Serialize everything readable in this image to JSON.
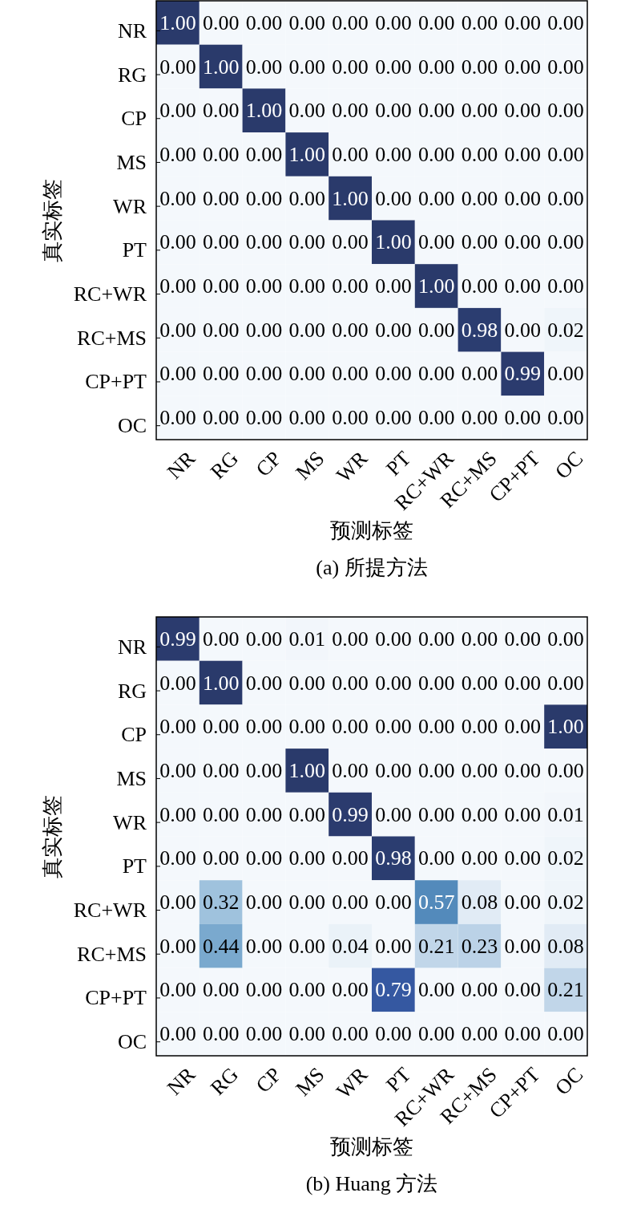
{
  "chart_data": [
    {
      "type": "heatmap",
      "title": "(a) 所提方法",
      "xlabel": "预测标签",
      "ylabel": "真实标签",
      "categories": [
        "NR",
        "RG",
        "CP",
        "MS",
        "WR",
        "PT",
        "RC+WR",
        "RC+MS",
        "CP+PT",
        "OC"
      ],
      "y_categories": [
        "NR",
        "RG",
        "CP",
        "MS",
        "WR",
        "PT",
        "RC+WR",
        "RC+MS",
        "CP+PT",
        "OC"
      ],
      "cells": [
        [
          1,
          0,
          0,
          0,
          0,
          0,
          0,
          0,
          0,
          0
        ],
        [
          0,
          1,
          0,
          0,
          0,
          0,
          0,
          0,
          0,
          0
        ],
        [
          0,
          0,
          1,
          0,
          0,
          0,
          0,
          0,
          0,
          0
        ],
        [
          0,
          0,
          0,
          1,
          0,
          0,
          0,
          0,
          0,
          0
        ],
        [
          0,
          0,
          0,
          0,
          1,
          0,
          0,
          0,
          0,
          0
        ],
        [
          0,
          0,
          0,
          0,
          0,
          1,
          0,
          0,
          0,
          0
        ],
        [
          0,
          0,
          0,
          0,
          0,
          0,
          1,
          0,
          0,
          0
        ],
        [
          0,
          0,
          0,
          0,
          0,
          0,
          0,
          0.98,
          0,
          0.02
        ],
        [
          0,
          0,
          0,
          0,
          0,
          0,
          0,
          0,
          0.99,
          0
        ],
        [
          0,
          0,
          0,
          0,
          0,
          0,
          0,
          0,
          0,
          0
        ]
      ],
      "cell_labels": [
        [
          "1.00",
          "0.00",
          "0.00",
          "0.00",
          "0.00",
          "0.00",
          "0.00",
          "0.00",
          "0.00",
          "0.00"
        ],
        [
          "0.00",
          "1.00",
          "0.00",
          "0.00",
          "0.00",
          "0.00",
          "0.00",
          "0.00",
          "0.00",
          "0.00"
        ],
        [
          "0.00",
          "0.00",
          "1.00",
          "0.00",
          "0.00",
          "0.00",
          "0.00",
          "0.00",
          "0.00",
          "0.00"
        ],
        [
          "0.00",
          "0.00",
          "0.00",
          "1.00",
          "0.00",
          "0.00",
          "0.00",
          "0.00",
          "0.00",
          "0.00"
        ],
        [
          "0.00",
          "0.00",
          "0.00",
          "0.00",
          "1.00",
          "0.00",
          "0.00",
          "0.00",
          "0.00",
          "0.00"
        ],
        [
          "0.00",
          "0.00",
          "0.00",
          "0.00",
          "0.00",
          "1.00",
          "0.00",
          "0.00",
          "0.00",
          "0.00"
        ],
        [
          "0.00",
          "0.00",
          "0.00",
          "0.00",
          "0.00",
          "0.00",
          "1.00",
          "0.00",
          "0.00",
          "0.00"
        ],
        [
          "0.00",
          "0.00",
          "0.00",
          "0.00",
          "0.00",
          "0.00",
          "0.00",
          "0.98",
          "0.00",
          "0.02"
        ],
        [
          "0.00",
          "0.00",
          "0.00",
          "0.00",
          "0.00",
          "0.00",
          "0.00",
          "0.00",
          "0.99",
          "0.00"
        ],
        [
          "0.00",
          "0.00",
          "0.00",
          "0.00",
          "0.00",
          "0.00",
          "0.00",
          "0.00",
          "0.00",
          "0.00"
        ]
      ]
    },
    {
      "type": "heatmap",
      "title": "(b) Huang 方法",
      "xlabel": "预测标签",
      "ylabel": "真实标签",
      "categories": [
        "NR",
        "RG",
        "CP",
        "MS",
        "WR",
        "PT",
        "RC+WR",
        "RC+MS",
        "CP+PT",
        "OC"
      ],
      "y_categories": [
        "NR",
        "RG",
        "CP",
        "MS",
        "WR",
        "PT",
        "RC+WR",
        "RC+MS",
        "CP+PT",
        "OC"
      ],
      "cells": [
        [
          0.99,
          0,
          0,
          0.01,
          0,
          0,
          0,
          0,
          0,
          0
        ],
        [
          0,
          1,
          0,
          0,
          0,
          0,
          0,
          0,
          0,
          0
        ],
        [
          0,
          0,
          0,
          0,
          0,
          0,
          0,
          0,
          0,
          1
        ],
        [
          0,
          0,
          0,
          1,
          0,
          0,
          0,
          0,
          0,
          0
        ],
        [
          0,
          0,
          0,
          0,
          0.99,
          0,
          0,
          0,
          0,
          0.01
        ],
        [
          0,
          0,
          0,
          0,
          0,
          0.98,
          0,
          0,
          0,
          0.02
        ],
        [
          0,
          0.32,
          0,
          0,
          0,
          0,
          0.57,
          0.08,
          0,
          0.02
        ],
        [
          0,
          0.44,
          0,
          0,
          0.04,
          0,
          0.21,
          0.23,
          0,
          0.08
        ],
        [
          0,
          0,
          0,
          0,
          0,
          0.79,
          0,
          0,
          0,
          0.21
        ],
        [
          0,
          0,
          0,
          0,
          0,
          0,
          0,
          0,
          0,
          0
        ]
      ],
      "cell_labels": [
        [
          "0.99",
          "0.00",
          "0.00",
          "0.01",
          "0.00",
          "0.00",
          "0.00",
          "0.00",
          "0.00",
          "0.00"
        ],
        [
          "0.00",
          "1.00",
          "0.00",
          "0.00",
          "0.00",
          "0.00",
          "0.00",
          "0.00",
          "0.00",
          "0.00"
        ],
        [
          "0.00",
          "0.00",
          "0.00",
          "0.00",
          "0.00",
          "0.00",
          "0.00",
          "0.00",
          "0.00",
          "1.00"
        ],
        [
          "0.00",
          "0.00",
          "0.00",
          "1.00",
          "0.00",
          "0.00",
          "0.00",
          "0.00",
          "0.00",
          "0.00"
        ],
        [
          "0.00",
          "0.00",
          "0.00",
          "0.00",
          "0.99",
          "0.00",
          "0.00",
          "0.00",
          "0.00",
          "0.01"
        ],
        [
          "0.00",
          "0.00",
          "0.00",
          "0.00",
          "0.00",
          "0.98",
          "0.00",
          "0.00",
          "0.00",
          "0.02"
        ],
        [
          "0.00",
          "0.32",
          "0.00",
          "0.00",
          "0.00",
          "0.00",
          "0.57",
          "0.08",
          "0.00",
          "0.02"
        ],
        [
          "0.00",
          "0.44",
          "0.00",
          "0.00",
          "0.04",
          "0.00",
          "0.21",
          "0.23",
          "0.00",
          "0.08"
        ],
        [
          "0.00",
          "0.00",
          "0.00",
          "0.00",
          "0.00",
          "0.79",
          "0.00",
          "0.00",
          "0.00",
          "0.21"
        ],
        [
          "0.00",
          "0.00",
          "0.00",
          "0.00",
          "0.00",
          "0.00",
          "0.00",
          "0.00",
          "0.00",
          "0.00"
        ]
      ]
    }
  ]
}
